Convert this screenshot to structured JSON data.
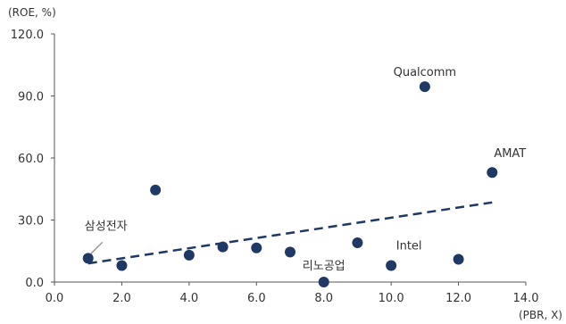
{
  "chart_data": {
    "type": "scatter",
    "title": "",
    "xlabel": "(PBR, X)",
    "ylabel": "(ROE, %)",
    "xlim": [
      0,
      14
    ],
    "ylim": [
      0,
      120
    ],
    "x_ticks": [
      "0.0",
      "2.0",
      "4.0",
      "6.0",
      "8.0",
      "10.0",
      "12.0",
      "14.0"
    ],
    "y_ticks": [
      "0.0",
      "30.0",
      "60.0",
      "90.0",
      "120.0"
    ],
    "grid": false,
    "legend": "none",
    "point_color": "#1f3864",
    "trend_color": "#1f3864",
    "points": [
      {
        "x": 1.0,
        "y": 11.5
      },
      {
        "x": 2.0,
        "y": 8.0
      },
      {
        "x": 3.0,
        "y": 44.5
      },
      {
        "x": 4.0,
        "y": 13.0
      },
      {
        "x": 5.0,
        "y": 17.0
      },
      {
        "x": 6.0,
        "y": 16.5
      },
      {
        "x": 7.0,
        "y": 14.5
      },
      {
        "x": 8.0,
        "y": 0.0
      },
      {
        "x": 9.0,
        "y": 19.0
      },
      {
        "x": 10.0,
        "y": 8.0
      },
      {
        "x": 11.0,
        "y": 94.5
      },
      {
        "x": 12.0,
        "y": 11.0
      },
      {
        "x": 13.0,
        "y": 53.0
      }
    ],
    "trendline": {
      "x": [
        1.0,
        13.0
      ],
      "y": [
        9.0,
        38.5
      ]
    },
    "annotations": [
      {
        "text": "삼성전자",
        "x": 1.0,
        "y": 11.5
      },
      {
        "text": "리노공업",
        "x": 8.0,
        "y": 0.0
      },
      {
        "text": "Intel",
        "x": 10.0,
        "y": 8.0
      },
      {
        "text": "Qualcomm",
        "x": 11.0,
        "y": 94.5
      },
      {
        "text": "AMAT",
        "x": 13.0,
        "y": 53.0
      }
    ]
  }
}
